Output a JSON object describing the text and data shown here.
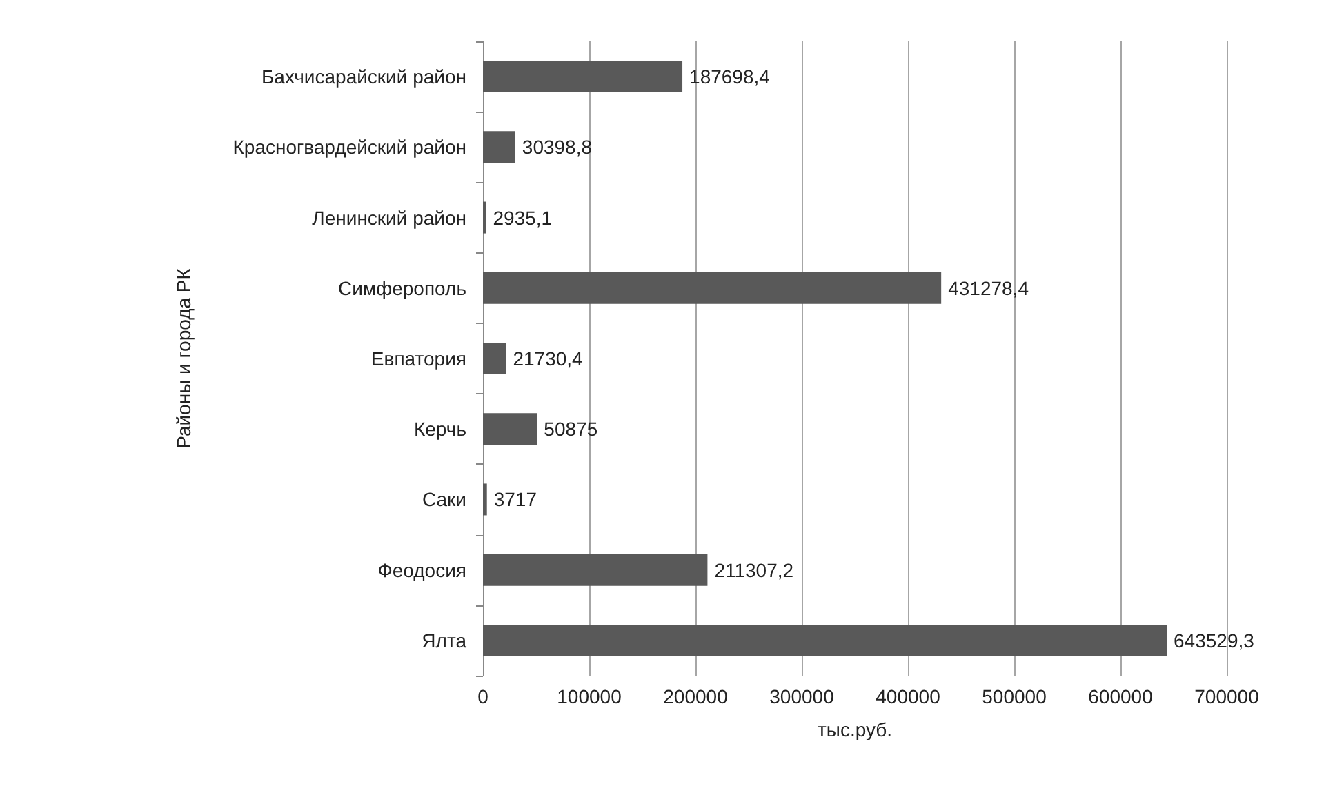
{
  "chart_data": {
    "type": "bar",
    "orientation": "horizontal",
    "xlabel": "тыс.руб.",
    "ylabel": "Районы и города РК",
    "categories": [
      "Бахчисарайский район",
      "Красногвардейский район",
      "Ленинский район",
      "Симферополь",
      "Евпатория",
      "Керчь",
      "Саки",
      "Феодосия",
      "Ялта"
    ],
    "values": [
      187698.4,
      30398.8,
      2935.1,
      431278.4,
      21730.4,
      50875,
      3717,
      211307.2,
      643529.3
    ],
    "value_labels": [
      "187698,4",
      "30398,8",
      "2935,1",
      "431278,4",
      "21730,4",
      "50875",
      "3717",
      "211307,2",
      "643529,3"
    ],
    "color": "#595959",
    "xlim": [
      0,
      700000
    ],
    "xticks": [
      0,
      100000,
      200000,
      300000,
      400000,
      500000,
      600000,
      700000
    ],
    "grid": "x"
  }
}
